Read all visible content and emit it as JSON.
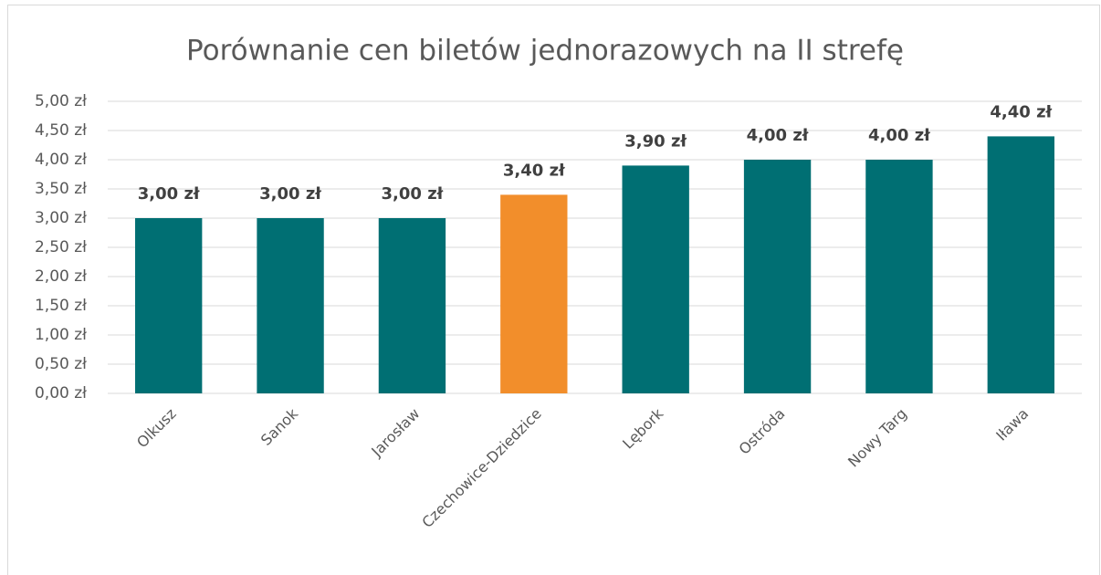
{
  "chart_data": {
    "type": "bar",
    "title": "Porównanie cen biletów jednorazowych na II strefę",
    "categories": [
      "Olkusz",
      "Sanok",
      "Jarosław",
      "Czechowice-Dziedzice",
      "Lębork",
      "Ostróda",
      "Nowy Targ",
      "Iława"
    ],
    "values": [
      3.0,
      3.0,
      3.0,
      3.4,
      3.9,
      4.0,
      4.0,
      4.4
    ],
    "value_labels": [
      "3,00 zł",
      "3,00 zł",
      "3,00 zł",
      "3,40 zł",
      "3,90 zł",
      "4,00 zł",
      "4,00 zł",
      "4,40 zł"
    ],
    "colors": [
      "#006f73",
      "#006f73",
      "#006f73",
      "#f28e2b",
      "#006f73",
      "#006f73",
      "#006f73",
      "#006f73"
    ],
    "ylim": [
      0,
      5
    ],
    "yticks": [
      {
        "value": 0,
        "label": "0,00 zł"
      },
      {
        "value": 0.5,
        "label": "0,50 zł"
      },
      {
        "value": 1,
        "label": "1,00 zł"
      },
      {
        "value": 1.5,
        "label": "1,50 zł"
      },
      {
        "value": 2,
        "label": "2,00 zł"
      },
      {
        "value": 2.5,
        "label": "2,50 zł"
      },
      {
        "value": 3,
        "label": "3,00 zł"
      },
      {
        "value": 3.5,
        "label": "3,50 zł"
      },
      {
        "value": 4,
        "label": "4,00 zł"
      },
      {
        "value": 4.5,
        "label": "4,50 zł"
      },
      {
        "value": 5,
        "label": "5,00 zł"
      }
    ],
    "grid": true
  }
}
